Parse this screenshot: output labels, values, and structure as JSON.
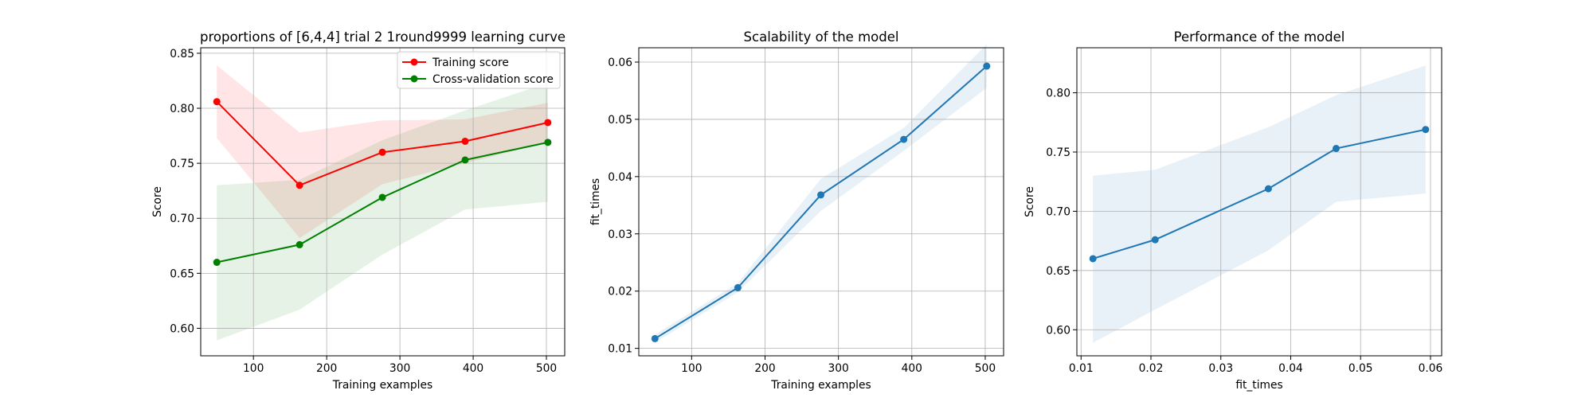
{
  "chart_data": [
    {
      "type": "line",
      "title": "proportions of [6,4,4] trial 2 1round9999 learning curve",
      "xlabel": "Training examples",
      "ylabel": "Score",
      "xlim": [
        28,
        525
      ],
      "ylim": [
        0.575,
        0.855
      ],
      "xticks": [
        100,
        200,
        300,
        400,
        500
      ],
      "xtick_labels": [
        "100",
        "200",
        "300",
        "400",
        "500"
      ],
      "yticks": [
        0.6,
        0.65,
        0.7,
        0.75,
        0.8,
        0.85
      ],
      "ytick_labels": [
        "0.60",
        "0.65",
        "0.70",
        "0.75",
        "0.80",
        "0.85"
      ],
      "grid": true,
      "legend": "top-right",
      "x": [
        50,
        163,
        276,
        389,
        502
      ],
      "series": [
        {
          "name": "Training score",
          "color": "#ff0000",
          "values": [
            0.806,
            0.73,
            0.76,
            0.77,
            0.787
          ],
          "band_lower": [
            0.773,
            0.682,
            0.731,
            0.75,
            0.769
          ],
          "band_upper": [
            0.839,
            0.778,
            0.789,
            0.79,
            0.805
          ]
        },
        {
          "name": "Cross-validation score",
          "color": "#008000",
          "values": [
            0.66,
            0.676,
            0.719,
            0.753,
            0.769
          ],
          "band_lower": [
            0.589,
            0.617,
            0.667,
            0.708,
            0.715
          ],
          "band_upper": [
            0.73,
            0.735,
            0.771,
            0.798,
            0.823
          ]
        }
      ]
    },
    {
      "type": "line",
      "title": "Scalability of the model",
      "xlabel": "Training examples",
      "ylabel": "fit_times",
      "xlim": [
        28,
        525
      ],
      "ylim": [
        0.0087,
        0.0625
      ],
      "xticks": [
        100,
        200,
        300,
        400,
        500
      ],
      "xtick_labels": [
        "100",
        "200",
        "300",
        "400",
        "500"
      ],
      "yticks": [
        0.01,
        0.02,
        0.03,
        0.04,
        0.05,
        0.06
      ],
      "ytick_labels": [
        "0.01",
        "0.02",
        "0.03",
        "0.04",
        "0.05",
        "0.06"
      ],
      "grid": true,
      "x": [
        50,
        163,
        276,
        389,
        502
      ],
      "series": [
        {
          "color": "#1f77b4",
          "values": [
            0.0117,
            0.0206,
            0.0368,
            0.0465,
            0.0593
          ],
          "band_lower": [
            0.011,
            0.0198,
            0.034,
            0.0445,
            0.0555
          ],
          "band_upper": [
            0.0124,
            0.0214,
            0.0396,
            0.0485,
            0.0631
          ]
        }
      ]
    },
    {
      "type": "line",
      "title": "Performance of the model",
      "xlabel": "fit_times",
      "ylabel": "Score",
      "xlim": [
        0.0094,
        0.0616
      ],
      "ylim": [
        0.578,
        0.838
      ],
      "xticks": [
        0.01,
        0.02,
        0.03,
        0.04,
        0.05,
        0.06
      ],
      "xtick_labels": [
        "0.01",
        "0.02",
        "0.03",
        "0.04",
        "0.05",
        "0.06"
      ],
      "yticks": [
        0.6,
        0.65,
        0.7,
        0.75,
        0.8
      ],
      "ytick_labels": [
        "0.60",
        "0.65",
        "0.70",
        "0.75",
        "0.80"
      ],
      "grid": true,
      "x": [
        0.0117,
        0.0206,
        0.0368,
        0.0465,
        0.0593
      ],
      "series": [
        {
          "color": "#1f77b4",
          "values": [
            0.66,
            0.676,
            0.719,
            0.753,
            0.769
          ],
          "band_lower": [
            0.589,
            0.617,
            0.667,
            0.708,
            0.715
          ],
          "band_upper": [
            0.73,
            0.735,
            0.771,
            0.798,
            0.823
          ]
        }
      ]
    }
  ]
}
